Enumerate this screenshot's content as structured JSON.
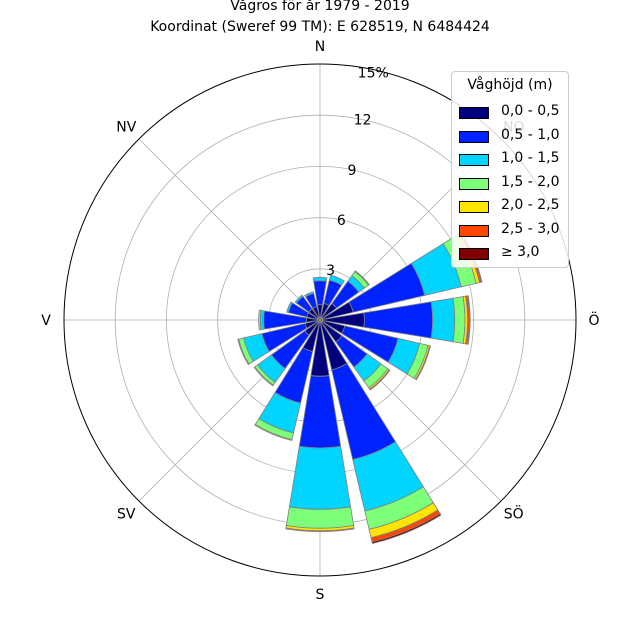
{
  "title_line1": "Vågros för år 1979 - 2019",
  "title_line2": "Koordinat (Sweref 99 TM): E 628519, N 6484424",
  "chart_data": {
    "type": "polar-stacked-bar",
    "title": "Vågros för år 1979 - 2019",
    "subtitle": "Koordinat (Sweref 99 TM): E 628519, N 6484424",
    "direction_labels": [
      "N",
      "NO",
      "Ö",
      "SÖ",
      "S",
      "SV",
      "V",
      "NV"
    ],
    "radial_ticks": [
      3,
      6,
      9,
      12
    ],
    "radial_max_label": "15%",
    "rmax": 15,
    "grid": true,
    "legend": {
      "title": "Våghöjd (m)",
      "placement": "top-right",
      "items": [
        {
          "label": "0,0 - 0,5",
          "color": "#00007f"
        },
        {
          "label": "0,5 - 1,0",
          "color": "#0022ff"
        },
        {
          "label": "1,0 - 1,5",
          "color": "#00d4ff"
        },
        {
          "label": "1,5 - 2,0",
          "color": "#7dff7a"
        },
        {
          "label": "2,0 - 2,5",
          "color": "#ffe500"
        },
        {
          "label": "2,5 - 3,0",
          "color": "#ff4700"
        },
        {
          "label": "≥ 3,0",
          "color": "#7f0000"
        }
      ]
    },
    "directions_deg": [
      0,
      22.5,
      45,
      67.5,
      90,
      112.5,
      135,
      157.5,
      180,
      202.5,
      225,
      247.5,
      270,
      292.5,
      315,
      337.5
    ],
    "series": [
      {
        "name": "0,0 - 0,5",
        "values": [
          0.9,
          1.0,
          1.2,
          2.0,
          2.6,
          1.5,
          1.6,
          3.0,
          3.3,
          1.9,
          1.1,
          0.9,
          0.8,
          0.8,
          0.8,
          0.8
        ]
      },
      {
        "name": "0,5 - 1,0",
        "values": [
          1.4,
          1.4,
          1.6,
          4.3,
          4.0,
          3.2,
          1.8,
          5.4,
          4.2,
          3.1,
          2.4,
          2.6,
          2.5,
          1.1,
          0.9,
          0.8
        ]
      },
      {
        "name": "1,0 - 1,5",
        "values": [
          0.2,
          0.3,
          0.4,
          2.2,
          1.3,
          1.3,
          1.0,
          3.1,
          3.6,
          1.8,
          1.0,
          1.1,
          0.2,
          0.1,
          0.1,
          0.1
        ]
      },
      {
        "name": "1,5 - 2,0",
        "values": [
          0.0,
          0.0,
          0.3,
          0.9,
          0.6,
          0.5,
          0.5,
          1.1,
          1.1,
          0.4,
          0.2,
          0.3,
          0.1,
          0.0,
          0.0,
          0.0
        ]
      },
      {
        "name": "2,0 - 2,5",
        "values": [
          0.0,
          0.0,
          0.05,
          0.2,
          0.15,
          0.1,
          0.1,
          0.5,
          0.15,
          0.05,
          0.05,
          0.05,
          0.0,
          0.0,
          0.0,
          0.0
        ]
      },
      {
        "name": "2,5 - 3,0",
        "values": [
          0.0,
          0.0,
          0.0,
          0.1,
          0.1,
          0.05,
          0.05,
          0.25,
          0.05,
          0.0,
          0.0,
          0.0,
          0.0,
          0.0,
          0.0,
          0.0
        ]
      },
      {
        "name": "≥ 3,0",
        "values": [
          0.0,
          0.0,
          0.0,
          0.05,
          0.05,
          0.0,
          0.0,
          0.1,
          0.0,
          0.0,
          0.0,
          0.0,
          0.0,
          0.0,
          0.0,
          0.0
        ]
      }
    ]
  }
}
